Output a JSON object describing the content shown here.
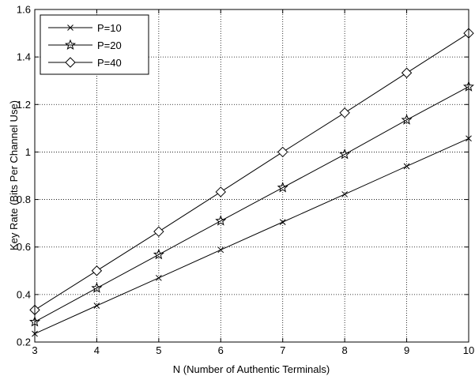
{
  "chart_data": {
    "type": "line",
    "xlabel": "N (Number of Authentic Terminals)",
    "ylabel": "Key Rate (Bits Per Channel Use)",
    "xlim": [
      3,
      10
    ],
    "ylim": [
      0.2,
      1.6
    ],
    "xticks": [
      3,
      4,
      5,
      6,
      7,
      8,
      9,
      10
    ],
    "yticks": [
      0.2,
      0.4,
      0.6,
      0.8,
      1.0,
      1.2,
      1.4,
      1.6
    ],
    "ytick_labels": [
      "0.2",
      "0.4",
      "0.6",
      "0.8",
      "1",
      "1.2",
      "1.4",
      "1.6"
    ],
    "grid": true,
    "legend_position": "top-left",
    "x": [
      3,
      4,
      5,
      6,
      7,
      8,
      9,
      10
    ],
    "series": [
      {
        "name": "P=10",
        "marker": "x-mark",
        "values": [
          0.235,
          0.353,
          0.47,
          0.588,
          0.705,
          0.822,
          0.94,
          1.057
        ]
      },
      {
        "name": "P=20",
        "marker": "star",
        "values": [
          0.285,
          0.427,
          0.568,
          0.71,
          0.85,
          0.99,
          1.135,
          1.275
        ]
      },
      {
        "name": "P=40",
        "marker": "diamond",
        "values": [
          0.335,
          0.5,
          0.665,
          0.832,
          1.0,
          1.165,
          1.333,
          1.5
        ]
      }
    ]
  }
}
